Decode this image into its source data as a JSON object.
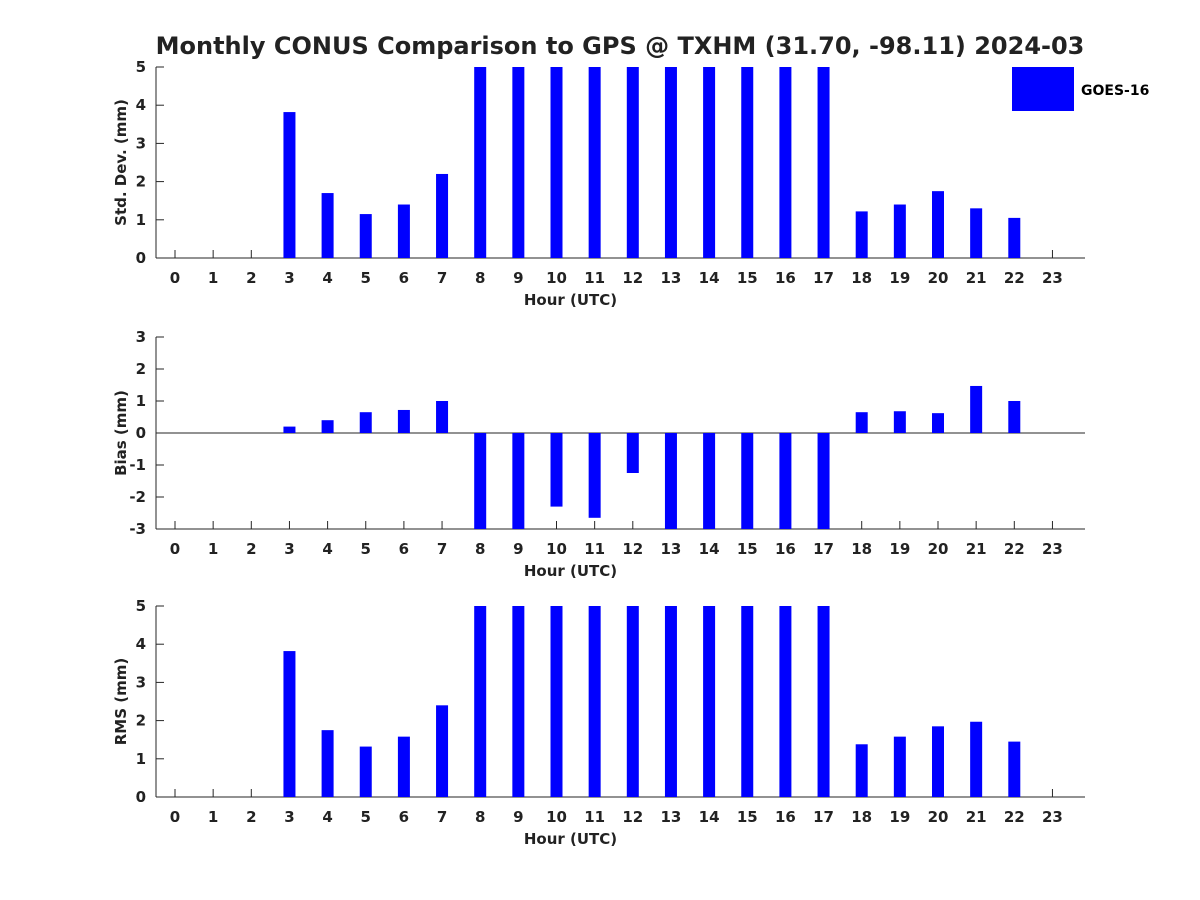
{
  "title": "Monthly CONUS Comparison to GPS @ TXHM (31.70, -98.11) 2024-03",
  "legend": {
    "label": "GOES-16",
    "color": "#0000ff",
    "placement": "top-right"
  },
  "chart_data": [
    {
      "type": "bar",
      "name": "stddev",
      "xlabel": "Hour (UTC)",
      "ylabel": "Std. Dev. (mm)",
      "categories": [
        "0",
        "1",
        "2",
        "3",
        "4",
        "5",
        "6",
        "7",
        "8",
        "9",
        "10",
        "11",
        "12",
        "13",
        "14",
        "15",
        "16",
        "17",
        "18",
        "19",
        "20",
        "21",
        "22",
        "23"
      ],
      "values": [
        null,
        null,
        null,
        3.82,
        1.7,
        1.15,
        1.4,
        2.2,
        5,
        5,
        5,
        5,
        5,
        5,
        5,
        5,
        5,
        5,
        1.22,
        1.4,
        1.75,
        1.3,
        1.05,
        null
      ],
      "ylim": [
        0,
        5
      ],
      "yticks": [
        "0",
        "1",
        "2",
        "3",
        "4",
        "5"
      ],
      "zero_line": false,
      "grid": false
    },
    {
      "type": "bar",
      "name": "bias",
      "xlabel": "Hour (UTC)",
      "ylabel": "Bias (mm)",
      "categories": [
        "0",
        "1",
        "2",
        "3",
        "4",
        "5",
        "6",
        "7",
        "8",
        "9",
        "10",
        "11",
        "12",
        "13",
        "14",
        "15",
        "16",
        "17",
        "18",
        "19",
        "20",
        "21",
        "22",
        "23"
      ],
      "values": [
        null,
        null,
        null,
        0.2,
        0.4,
        0.65,
        0.72,
        1.0,
        -3,
        -3,
        -2.3,
        -2.65,
        -1.25,
        -3,
        -3,
        -3,
        -3,
        -3,
        0.65,
        0.68,
        0.62,
        1.47,
        1.0,
        null
      ],
      "ylim": [
        -3,
        3
      ],
      "yticks": [
        "-3",
        "-2",
        "-1",
        "0",
        "1",
        "2",
        "3"
      ],
      "zero_line": true,
      "grid": false
    },
    {
      "type": "bar",
      "name": "rms",
      "xlabel": "Hour (UTC)",
      "ylabel": "RMS (mm)",
      "categories": [
        "0",
        "1",
        "2",
        "3",
        "4",
        "5",
        "6",
        "7",
        "8",
        "9",
        "10",
        "11",
        "12",
        "13",
        "14",
        "15",
        "16",
        "17",
        "18",
        "19",
        "20",
        "21",
        "22",
        "23"
      ],
      "values": [
        null,
        null,
        null,
        3.82,
        1.75,
        1.32,
        1.58,
        2.4,
        5,
        5,
        5,
        5,
        5,
        5,
        5,
        5,
        5,
        5,
        1.38,
        1.58,
        1.85,
        1.97,
        1.45,
        null
      ],
      "ylim": [
        0,
        5
      ],
      "yticks": [
        "0",
        "1",
        "2",
        "3",
        "4",
        "5"
      ],
      "zero_line": false,
      "grid": false
    }
  ]
}
